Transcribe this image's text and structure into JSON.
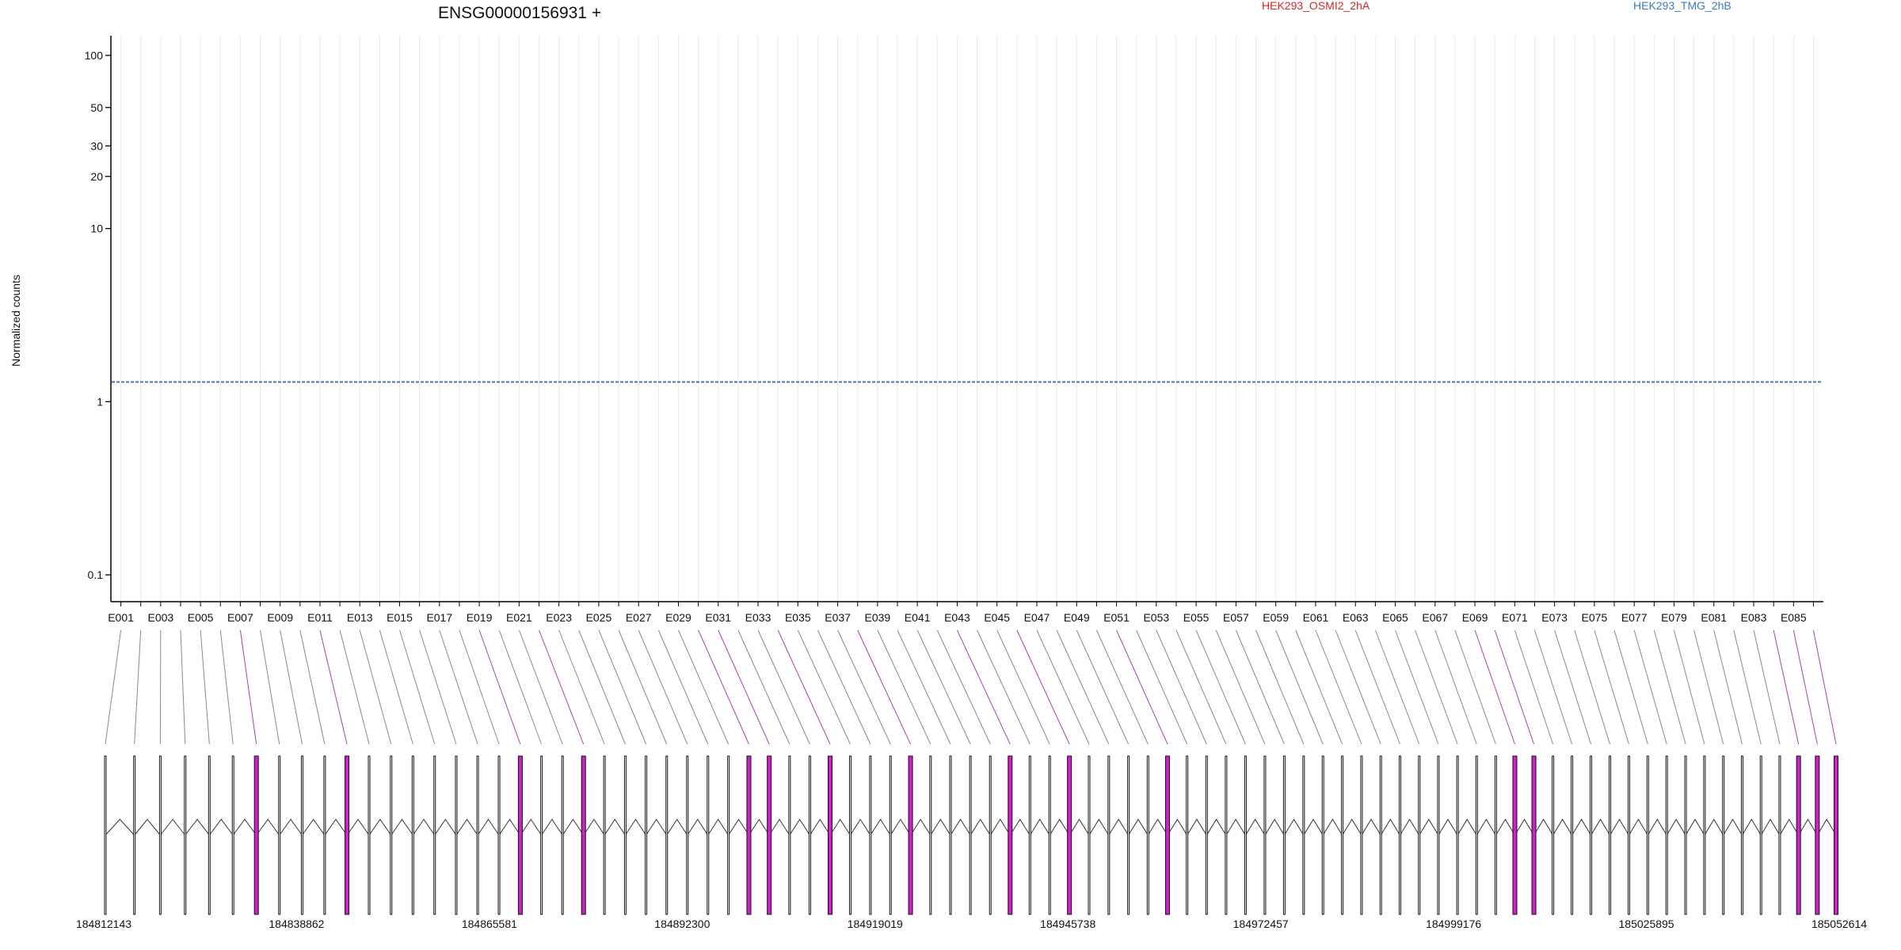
{
  "title": "ENSG00000156931 +",
  "legend": [
    {
      "name": "HEK293_OSMI2_2hA",
      "color": "#d62728"
    },
    {
      "name": "HEK293_TMG_2hB",
      "color": "#3a7dbf"
    }
  ],
  "chart_data": {
    "type": "line",
    "title": "ENSG00000156931 +",
    "ylabel": "Normalized counts",
    "xlabel": "",
    "yscale": "log",
    "ylim": [
      0.07,
      130
    ],
    "y_ticks": [
      0.1,
      1,
      10,
      20,
      30,
      50,
      100
    ],
    "y_tick_labels": [
      "0.1",
      "1",
      "10",
      "20",
      "30",
      "50",
      "100"
    ],
    "n_exons": 86,
    "x_tick_labels": [
      "E001",
      "E003",
      "E005",
      "E007",
      "E009",
      "E011",
      "E013",
      "E015",
      "E017",
      "E019",
      "E021",
      "E023",
      "E025",
      "E027",
      "E029",
      "E031",
      "E033",
      "E035",
      "E037",
      "E039",
      "E041",
      "E043",
      "E045",
      "E047",
      "E049",
      "E051",
      "E053",
      "E055",
      "E057",
      "E059",
      "E061",
      "E063",
      "E065",
      "E067",
      "E069",
      "E071",
      "E073",
      "E075",
      "E077",
      "E079",
      "E081",
      "E083",
      "E085"
    ],
    "legend_position": "top",
    "grid": "vertical",
    "series": [
      {
        "name": "HEK293_OSMI2_2hA",
        "color": "#d62728",
        "replicate": 1,
        "values": [
          1.3,
          1.3,
          1.3,
          1.3,
          1.3,
          1.3,
          1.3,
          1.3,
          1.3,
          1.3,
          1.3,
          1.3,
          1.3,
          1.3,
          1.3,
          1.3,
          1.3,
          1.3,
          1.3,
          1.3,
          1.3,
          1.3,
          1.3,
          1.3,
          1.3,
          1.3,
          1.3,
          1.3,
          1.3,
          1.3,
          1.3,
          1.3,
          1.3,
          1.3,
          1.3,
          1.3,
          1.3,
          1.3,
          1.3,
          1.3,
          1.3,
          1.3,
          1.3,
          1.3,
          1.3,
          1.3,
          1.3,
          1.3,
          1.3,
          1.3,
          1.3,
          1.3,
          1.3,
          1.3,
          1.3,
          1.3,
          1.3,
          1.3,
          1.3,
          1.3,
          1.3,
          1.3,
          1.3,
          1.3,
          1.3,
          1.3,
          1.3,
          1.3,
          1.3,
          1.3,
          1.3,
          1.3,
          1.3,
          1.3,
          1.3,
          1.3,
          1.3,
          1.3,
          1.3,
          1.3,
          1.3,
          1.3,
          1.3,
          1.3,
          1.3,
          1.3
        ]
      },
      {
        "name": "HEK293_OSMI2_2hA",
        "color": "#d62728",
        "replicate": 2,
        "values": [
          1.3,
          1.3,
          1.3,
          1.3,
          1.3,
          1.3,
          1.3,
          1.3,
          1.3,
          1.3,
          1.3,
          1.3,
          1.3,
          1.3,
          1.3,
          1.3,
          1.3,
          1.3,
          1.3,
          1.3,
          1.3,
          1.3,
          1.3,
          1.3,
          1.3,
          1.3,
          1.3,
          1.3,
          1.3,
          1.3,
          1.3,
          1.3,
          1.3,
          1.3,
          1.3,
          1.3,
          1.3,
          1.3,
          1.3,
          1.3,
          1.3,
          1.3,
          1.3,
          1.3,
          1.3,
          1.3,
          1.3,
          1.3,
          1.3,
          1.3,
          1.3,
          1.3,
          1.3,
          1.3,
          1.3,
          1.3,
          1.3,
          1.3,
          1.3,
          1.3,
          1.3,
          1.3,
          1.3,
          1.3,
          1.3,
          1.3,
          1.3,
          1.3,
          1.3,
          1.3,
          1.3,
          1.3,
          1.3,
          1.3,
          1.3,
          1.3,
          1.3,
          1.3,
          1.3,
          1.3,
          1.3,
          1.3,
          1.3,
          1.3,
          1.3,
          1.3
        ]
      },
      {
        "name": "HEK293_OSMI2_2hA",
        "color": "#d62728",
        "replicate": 3,
        "values": [
          1.3,
          1.3,
          1.3,
          1.3,
          1.3,
          1.3,
          1.3,
          1.3,
          1.3,
          1.3,
          1.3,
          1.3,
          1.3,
          1.3,
          1.3,
          1.3,
          1.3,
          1.3,
          1.3,
          1.3,
          1.3,
          1.3,
          1.3,
          1.3,
          1.3,
          1.3,
          1.3,
          1.3,
          1.3,
          1.3,
          1.3,
          1.3,
          1.3,
          1.3,
          1.3,
          1.3,
          1.3,
          1.3,
          1.3,
          1.3,
          1.3,
          1.3,
          1.3,
          1.3,
          1.3,
          1.3,
          1.3,
          1.3,
          1.3,
          1.3,
          1.3,
          1.3,
          1.3,
          1.3,
          1.3,
          1.3,
          1.3,
          1.3,
          1.3,
          1.3,
          1.3,
          1.3,
          1.3,
          1.3,
          1.3,
          1.3,
          1.3,
          1.3,
          1.3,
          1.3,
          1.3,
          1.3,
          1.3,
          1.3,
          1.3,
          1.3,
          1.3,
          1.3,
          1.3,
          1.3,
          1.3,
          1.3,
          1.3,
          1.3,
          1.3,
          1.3
        ]
      },
      {
        "name": "HEK293_TMG_2hB",
        "color": "#3a7dbf",
        "replicate": 1,
        "values": [
          1.3,
          1.3,
          1.3,
          1.3,
          1.3,
          1.3,
          1.3,
          1.3,
          1.3,
          1.3,
          1.3,
          1.3,
          1.3,
          1.3,
          1.3,
          1.3,
          1.3,
          1.3,
          1.3,
          1.3,
          1.3,
          1.3,
          1.3,
          1.3,
          1.3,
          1.3,
          1.3,
          1.3,
          1.3,
          1.3,
          1.3,
          1.3,
          1.3,
          1.3,
          1.3,
          1.3,
          1.3,
          1.3,
          1.3,
          1.3,
          1.3,
          1.3,
          1.3,
          1.3,
          1.3,
          1.3,
          1.3,
          1.3,
          1.3,
          1.3,
          1.3,
          1.3,
          1.3,
          1.3,
          1.3,
          1.3,
          1.3,
          1.3,
          1.3,
          1.3,
          1.3,
          1.3,
          1.3,
          1.3,
          1.3,
          1.3,
          1.3,
          1.3,
          1.3,
          1.3,
          1.3,
          1.3,
          1.3,
          1.3,
          1.3,
          1.3,
          1.3,
          1.3,
          1.3,
          1.3,
          1.3,
          1.3,
          1.3,
          1.3,
          1.3,
          1.3
        ]
      },
      {
        "name": "HEK293_TMG_2hB",
        "color": "#3a7dbf",
        "replicate": 2,
        "values": [
          1.3,
          1.3,
          1.3,
          1.3,
          1.3,
          1.3,
          1.3,
          1.3,
          1.3,
          1.3,
          1.3,
          1.3,
          1.3,
          1.3,
          1.3,
          1.3,
          1.3,
          1.3,
          1.3,
          1.3,
          1.3,
          1.3,
          1.3,
          1.3,
          1.3,
          1.3,
          1.3,
          1.3,
          1.3,
          1.3,
          1.3,
          1.3,
          1.3,
          1.3,
          1.3,
          1.3,
          1.3,
          1.3,
          1.3,
          1.3,
          1.3,
          1.3,
          1.3,
          1.3,
          1.3,
          1.3,
          1.3,
          1.3,
          1.3,
          1.3,
          1.3,
          1.3,
          1.3,
          1.3,
          1.3,
          1.3,
          1.3,
          1.3,
          1.3,
          1.3,
          1.3,
          1.3,
          1.3,
          1.3,
          1.3,
          1.3,
          1.3,
          1.3,
          1.3,
          1.3,
          1.3,
          1.3,
          1.3,
          1.3,
          1.3,
          1.3,
          1.3,
          1.3,
          1.3,
          1.3,
          1.3,
          1.3,
          1.3,
          1.3,
          1.3,
          1.3
        ]
      },
      {
        "name": "HEK293_TMG_2hB",
        "color": "#3a7dbf",
        "replicate": 3,
        "values": [
          1.3,
          1.3,
          1.3,
          1.3,
          1.3,
          1.3,
          1.3,
          1.3,
          1.3,
          1.3,
          1.3,
          1.3,
          1.3,
          1.3,
          1.3,
          1.3,
          1.3,
          1.3,
          1.3,
          1.3,
          1.3,
          1.3,
          1.3,
          1.3,
          1.3,
          1.3,
          1.3,
          1.3,
          1.3,
          1.3,
          1.3,
          1.3,
          1.3,
          1.3,
          1.3,
          1.3,
          1.3,
          1.3,
          1.3,
          1.3,
          1.3,
          1.3,
          1.3,
          1.3,
          1.3,
          1.3,
          1.3,
          1.3,
          1.3,
          1.3,
          1.3,
          1.3,
          1.3,
          1.3,
          1.3,
          1.3,
          1.3,
          1.3,
          1.3,
          1.3,
          1.3,
          1.3,
          1.3,
          1.3,
          1.3,
          1.3,
          1.3,
          1.3,
          1.3,
          1.3,
          1.3,
          1.3,
          1.3,
          1.3,
          1.3,
          1.3,
          1.3,
          1.3,
          1.3,
          1.3,
          1.3,
          1.3,
          1.3,
          1.3,
          1.3,
          1.3
        ]
      }
    ],
    "genomic_axis": {
      "range": [
        184812143,
        185052614
      ],
      "tick_labels": [
        "184812143",
        "184838862",
        "184865581",
        "184892300",
        "184919019",
        "184945738",
        "184972457",
        "184999176",
        "185025895",
        "185052614"
      ]
    },
    "highlight_exons": [
      "E007",
      "E011",
      "E019",
      "E022",
      "E030",
      "E031",
      "E034",
      "E038",
      "E043",
      "E046",
      "E051",
      "E069",
      "E070",
      "E084",
      "E085",
      "E086"
    ]
  }
}
